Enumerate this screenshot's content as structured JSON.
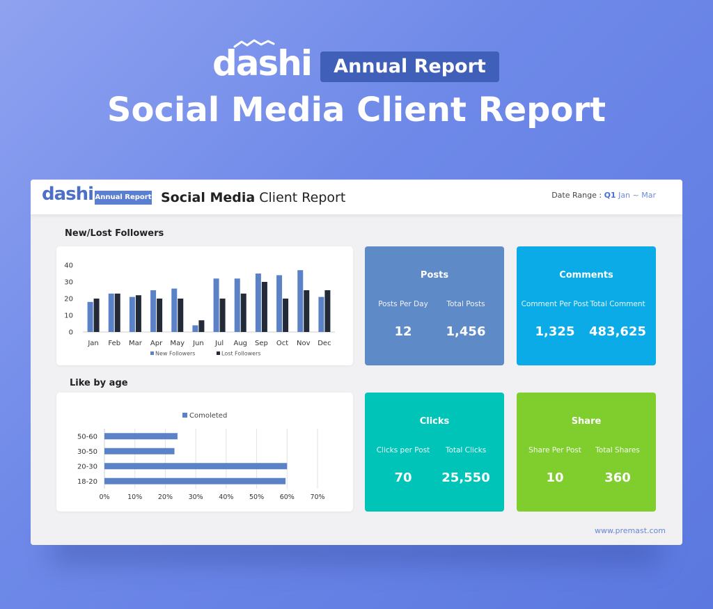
{
  "hero": {
    "logo": "dashi",
    "badge": "Annual Report",
    "title": "Social Media Client Report"
  },
  "slide": {
    "logo": "dashi",
    "badge": "Annual Report",
    "title_bold": "Social Media",
    "title_rest": " Client Report",
    "date_label": "Date Range : ",
    "date_quarter": "Q1",
    "date_range": " Jan ~ Mar",
    "footer_url": "www.premast.com"
  },
  "colors": {
    "new_followers": "#5b82c7",
    "lost_followers": "#232a38",
    "posts": "#5f8ac8",
    "comments": "#0aabe6",
    "clicks": "#00c4b8",
    "share": "#7fce2e"
  },
  "sections": {
    "followers_title": "New/Lost Followers",
    "age_title": "Like by age"
  },
  "tiles": [
    {
      "title": "Posts",
      "label1": "Posts Per Day",
      "value1": "12",
      "label2": "Total Posts",
      "value2": "1,456"
    },
    {
      "title": "Comments",
      "label1": "Comment Per Post",
      "value1": "1,325",
      "label2": "Total Comment",
      "value2": "483,625"
    },
    {
      "title": "Clicks",
      "label1": "Clicks per Post",
      "value1": "70",
      "label2": "Total Clicks",
      "value2": "25,550"
    },
    {
      "title": "Share",
      "label1": "Share Per Post",
      "value1": "10",
      "label2": "Total Shares",
      "value2": "360"
    }
  ],
  "chart_data": [
    {
      "type": "bar",
      "title": "New/Lost Followers",
      "categories": [
        "Jan",
        "Feb",
        "Mar",
        "Apr",
        "May",
        "Jun",
        "Jul",
        "Aug",
        "Sep",
        "Oct",
        "Nov",
        "Dec"
      ],
      "series": [
        {
          "name": "New Followers",
          "values": [
            18,
            23,
            21,
            25,
            26,
            4,
            32,
            32,
            35,
            34,
            37,
            21
          ]
        },
        {
          "name": "Lost Followers",
          "values": [
            20,
            23,
            22,
            20,
            20,
            7,
            20,
            23,
            30,
            20,
            25,
            25
          ]
        }
      ],
      "yticks": [
        0,
        10,
        20,
        30,
        40
      ],
      "ylim": [
        0,
        40
      ],
      "legend": "bottom",
      "grid": false
    },
    {
      "type": "bar",
      "orientation": "horizontal",
      "title": "Like by age",
      "categories": [
        "50-60",
        "30-50",
        "20-30",
        "18-20"
      ],
      "series": [
        {
          "name": "Comoleted",
          "values": [
            24,
            23,
            60,
            59.5
          ]
        }
      ],
      "xticks": [
        "0%",
        "10%",
        "20%",
        "30%",
        "40%",
        "50%",
        "60%",
        "70%"
      ],
      "xlim": [
        0,
        70
      ],
      "legend": "top",
      "grid": true
    }
  ]
}
